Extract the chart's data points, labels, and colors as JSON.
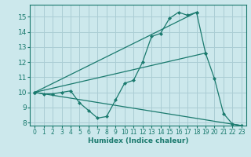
{
  "xlabel": "Humidex (Indice chaleur)",
  "xlim": [
    -0.5,
    23.5
  ],
  "ylim": [
    7.8,
    15.8
  ],
  "yticks": [
    8,
    9,
    10,
    11,
    12,
    13,
    14,
    15
  ],
  "xticks": [
    0,
    1,
    2,
    3,
    4,
    5,
    6,
    7,
    8,
    9,
    10,
    11,
    12,
    13,
    14,
    15,
    16,
    17,
    18,
    19,
    20,
    21,
    22,
    23
  ],
  "background_color": "#cce8ec",
  "grid_color": "#aacdd4",
  "line_color": "#1a7a6e",
  "lines": [
    {
      "x": [
        0,
        1,
        2,
        3,
        4,
        5,
        6,
        7,
        8,
        9,
        10,
        11,
        12,
        13,
        14,
        15,
        16,
        17,
        18,
        19,
        20,
        21,
        22,
        23
      ],
      "y": [
        10,
        9.9,
        9.9,
        10.0,
        10.1,
        9.3,
        8.8,
        8.3,
        8.4,
        9.5,
        10.6,
        10.8,
        12.0,
        13.7,
        13.9,
        14.9,
        15.3,
        15.1,
        15.3,
        12.6,
        10.9,
        8.6,
        7.9,
        7.8
      ]
    },
    {
      "x": [
        0,
        18
      ],
      "y": [
        10,
        15.3
      ]
    },
    {
      "x": [
        0,
        19
      ],
      "y": [
        10,
        12.6
      ]
    },
    {
      "x": [
        0,
        23
      ],
      "y": [
        10,
        7.8
      ]
    }
  ]
}
